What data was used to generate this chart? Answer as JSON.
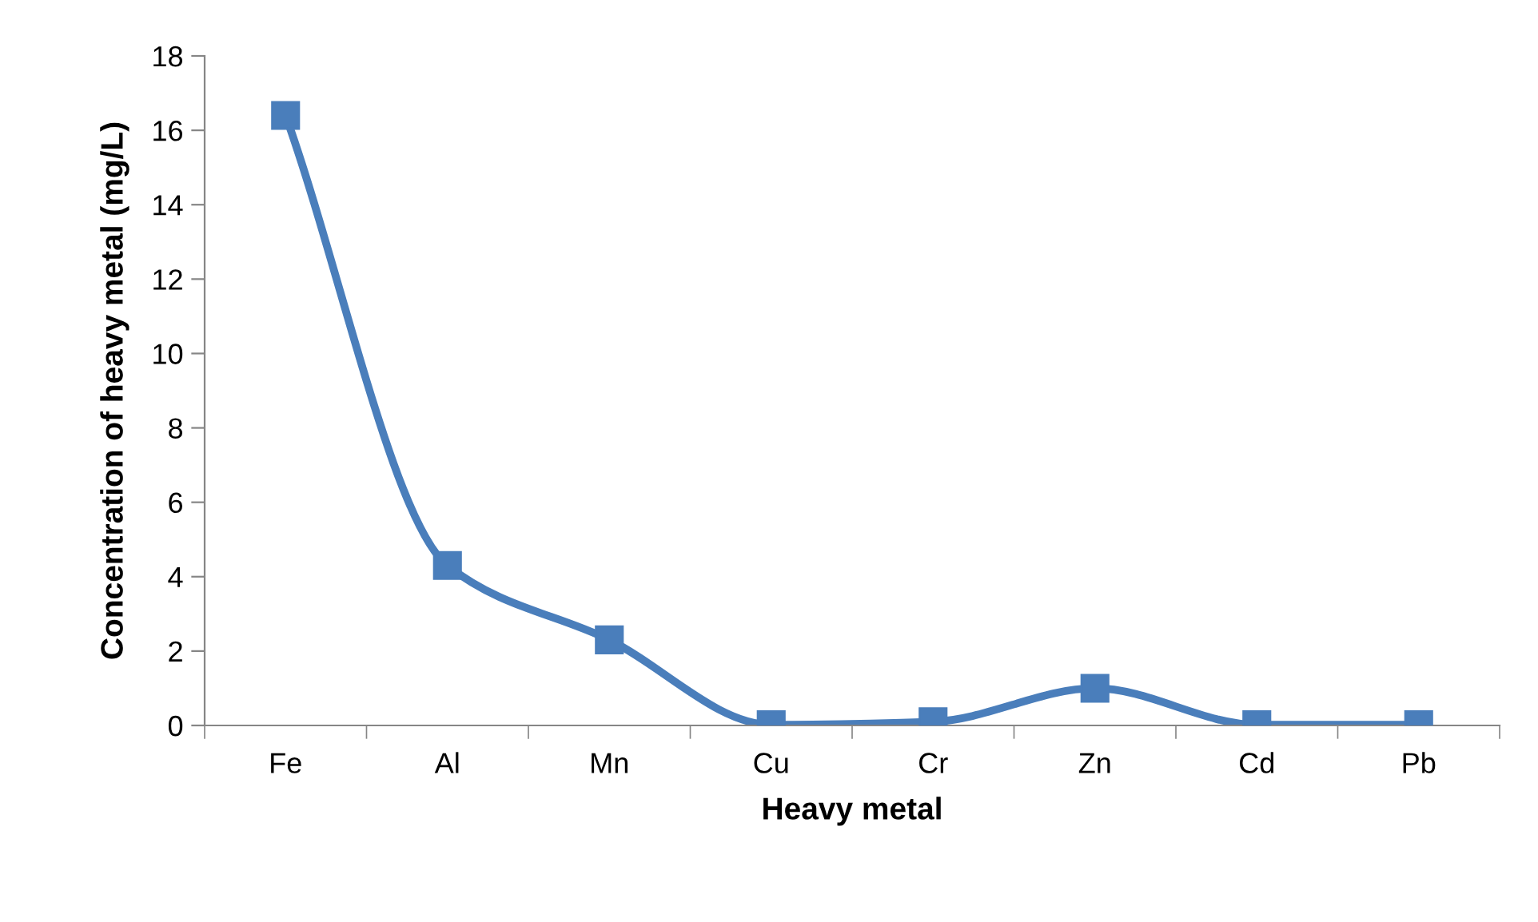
{
  "chart_data": {
    "type": "line",
    "xlabel": "Heavy metal",
    "ylabel": "Concentration of heavy metal (mg/L)",
    "categories": [
      "Fe",
      "Al",
      "Mn",
      "Cu",
      "Cr",
      "Zn",
      "Cd",
      "Pb"
    ],
    "series": [
      {
        "color": "#4a7ebb",
        "values": [
          16.4,
          4.3,
          2.3,
          0.02,
          0.1,
          1.0,
          0.02,
          0.02
        ]
      }
    ],
    "ylim": [
      0,
      18
    ],
    "yticks": [
      0,
      2,
      4,
      6,
      8,
      10,
      12,
      14,
      16,
      18
    ],
    "grid": false,
    "legend": false,
    "marker": "square",
    "line_style": "solid"
  }
}
